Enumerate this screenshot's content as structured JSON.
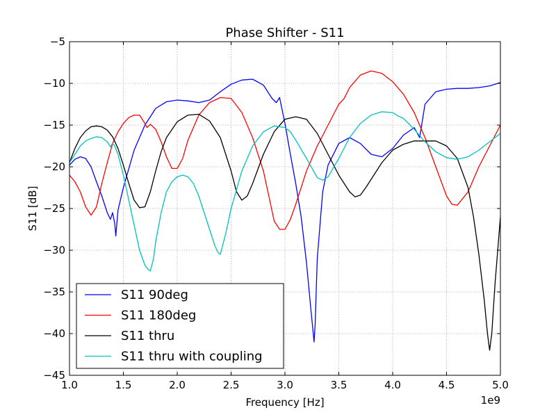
{
  "chart_data": {
    "type": "line",
    "title": "Phase Shifter - S11",
    "xlabel": "Frequency [Hz]",
    "ylabel": "S11 [dB]",
    "x_offset_label": "1e9",
    "xlim": [
      1.0,
      5.0
    ],
    "ylim": [
      -45,
      -5
    ],
    "xticks": [
      1.0,
      1.5,
      2.0,
      2.5,
      3.0,
      3.5,
      4.0,
      4.5,
      5.0
    ],
    "xtick_labels": [
      "1.0",
      "1.5",
      "2.0",
      "2.5",
      "3.0",
      "3.5",
      "4.0",
      "4.5",
      "5.0"
    ],
    "yticks": [
      -45,
      -40,
      -35,
      -30,
      -25,
      -20,
      -15,
      -10,
      -5
    ],
    "ytick_labels": [
      "−45",
      "−40",
      "−35",
      "−30",
      "−25",
      "−20",
      "−15",
      "−10",
      "−5"
    ],
    "grid": true,
    "legend_position": "lower-left",
    "series": [
      {
        "name": "S11 90deg",
        "color": "#0000ff",
        "x": [
          1.0,
          1.05,
          1.1,
          1.15,
          1.2,
          1.25,
          1.3,
          1.35,
          1.38,
          1.4,
          1.42,
          1.43,
          1.45,
          1.5,
          1.6,
          1.7,
          1.8,
          1.9,
          2.0,
          2.1,
          2.2,
          2.3,
          2.4,
          2.5,
          2.6,
          2.7,
          2.8,
          2.88,
          2.92,
          2.95,
          3.0,
          3.05,
          3.1,
          3.15,
          3.2,
          3.24,
          3.27,
          3.28,
          3.3,
          3.35,
          3.4,
          3.5,
          3.6,
          3.7,
          3.8,
          3.9,
          4.0,
          4.1,
          4.2,
          4.25,
          4.3,
          4.4,
          4.5,
          4.6,
          4.7,
          4.8,
          4.9,
          5.0
        ],
        "y": [
          -19.8,
          -19.1,
          -18.8,
          -19.0,
          -20.0,
          -21.8,
          -23.5,
          -25.5,
          -26.3,
          -25.5,
          -26.8,
          -28.3,
          -25.2,
          -22.5,
          -18.0,
          -15.0,
          -13.0,
          -12.2,
          -12.0,
          -12.1,
          -12.3,
          -12.0,
          -11.0,
          -10.1,
          -9.6,
          -9.5,
          -10.2,
          -11.8,
          -12.3,
          -11.7,
          -14.8,
          -18.5,
          -22.0,
          -26.0,
          -31.5,
          -37.0,
          -41.0,
          -39.0,
          -31.0,
          -23.0,
          -19.8,
          -17.2,
          -16.5,
          -17.2,
          -18.5,
          -18.8,
          -17.8,
          -16.2,
          -15.3,
          -16.5,
          -12.5,
          -11.0,
          -10.7,
          -10.6,
          -10.6,
          -10.5,
          -10.3,
          -9.9
        ]
      },
      {
        "name": "S11 180deg",
        "color": "#ff0000",
        "x": [
          1.0,
          1.05,
          1.1,
          1.15,
          1.2,
          1.25,
          1.3,
          1.35,
          1.4,
          1.45,
          1.5,
          1.55,
          1.6,
          1.65,
          1.7,
          1.72,
          1.75,
          1.8,
          1.85,
          1.9,
          1.95,
          2.0,
          2.05,
          2.1,
          2.2,
          2.3,
          2.4,
          2.5,
          2.6,
          2.7,
          2.8,
          2.85,
          2.9,
          2.95,
          3.0,
          3.05,
          3.1,
          3.2,
          3.3,
          3.4,
          3.5,
          3.55,
          3.6,
          3.7,
          3.8,
          3.9,
          4.0,
          4.1,
          4.2,
          4.3,
          4.4,
          4.5,
          4.55,
          4.6,
          4.7,
          4.8,
          4.9,
          5.0
        ],
        "y": [
          -21.0,
          -21.8,
          -23.0,
          -24.8,
          -25.8,
          -24.8,
          -22.0,
          -19.5,
          -17.2,
          -15.8,
          -14.8,
          -14.1,
          -13.8,
          -13.8,
          -14.8,
          -15.3,
          -14.9,
          -15.5,
          -17.0,
          -18.8,
          -20.2,
          -20.2,
          -19.0,
          -16.8,
          -13.8,
          -12.3,
          -11.7,
          -11.8,
          -13.5,
          -16.5,
          -20.5,
          -23.5,
          -26.5,
          -27.5,
          -27.5,
          -26.3,
          -24.5,
          -20.5,
          -17.5,
          -15.0,
          -12.5,
          -11.8,
          -10.5,
          -9.0,
          -8.5,
          -8.8,
          -9.8,
          -11.3,
          -13.5,
          -16.5,
          -20.0,
          -23.5,
          -24.5,
          -24.6,
          -23.0,
          -20.0,
          -17.5,
          -15.0
        ]
      },
      {
        "name": "S11 thru",
        "color": "#000000",
        "x": [
          1.0,
          1.05,
          1.1,
          1.15,
          1.2,
          1.25,
          1.3,
          1.35,
          1.4,
          1.45,
          1.5,
          1.55,
          1.6,
          1.65,
          1.7,
          1.75,
          1.8,
          1.85,
          1.9,
          2.0,
          2.1,
          2.2,
          2.3,
          2.4,
          2.5,
          2.55,
          2.6,
          2.65,
          2.7,
          2.8,
          2.9,
          3.0,
          3.1,
          3.2,
          3.3,
          3.4,
          3.5,
          3.6,
          3.65,
          3.7,
          3.75,
          3.8,
          3.9,
          4.0,
          4.1,
          4.2,
          4.3,
          4.4,
          4.5,
          4.6,
          4.7,
          4.75,
          4.8,
          4.85,
          4.88,
          4.9,
          4.92,
          4.95,
          5.0
        ],
        "y": [
          -19.5,
          -17.8,
          -16.5,
          -15.7,
          -15.2,
          -15.1,
          -15.2,
          -15.6,
          -16.4,
          -17.8,
          -19.8,
          -22.0,
          -24.0,
          -24.9,
          -24.8,
          -23.0,
          -20.5,
          -18.2,
          -16.5,
          -14.6,
          -13.8,
          -13.7,
          -14.5,
          -16.5,
          -20.5,
          -23.0,
          -24.0,
          -23.5,
          -22.0,
          -18.5,
          -15.8,
          -14.3,
          -14.0,
          -14.3,
          -16.0,
          -18.5,
          -21.0,
          -23.0,
          -23.6,
          -23.4,
          -22.5,
          -21.5,
          -19.5,
          -18.0,
          -17.3,
          -16.9,
          -16.9,
          -16.9,
          -17.5,
          -19.0,
          -22.5,
          -26.0,
          -30.5,
          -36.0,
          -40.0,
          -42.0,
          -40.0,
          -34.0,
          -26.0
        ]
      },
      {
        "name": "S11 thru with coupling",
        "color": "#00bfbf",
        "x": [
          1.0,
          1.05,
          1.1,
          1.15,
          1.2,
          1.25,
          1.3,
          1.35,
          1.38,
          1.4,
          1.42,
          1.45,
          1.5,
          1.55,
          1.6,
          1.65,
          1.7,
          1.73,
          1.75,
          1.78,
          1.8,
          1.85,
          1.9,
          1.95,
          2.0,
          2.05,
          2.1,
          2.15,
          2.2,
          2.25,
          2.3,
          2.35,
          2.38,
          2.4,
          2.45,
          2.5,
          2.6,
          2.7,
          2.8,
          2.9,
          3.0,
          3.05,
          3.1,
          3.2,
          3.3,
          3.35,
          3.4,
          3.5,
          3.6,
          3.7,
          3.8,
          3.9,
          4.0,
          4.05,
          4.1,
          4.2,
          4.3,
          4.4,
          4.5,
          4.6,
          4.7,
          4.8,
          4.9,
          5.0
        ],
        "y": [
          -19.5,
          -18.5,
          -17.5,
          -16.9,
          -16.6,
          -16.4,
          -16.5,
          -17.0,
          -17.6,
          -17.2,
          -17.5,
          -18.5,
          -21.0,
          -24.0,
          -27.0,
          -30.0,
          -31.8,
          -32.3,
          -32.5,
          -31.0,
          -29.0,
          -25.5,
          -23.0,
          -21.8,
          -21.2,
          -21.0,
          -21.2,
          -22.0,
          -23.5,
          -25.5,
          -27.5,
          -29.5,
          -30.3,
          -30.5,
          -28.0,
          -25.0,
          -20.5,
          -17.5,
          -15.8,
          -15.1,
          -15.3,
          -15.8,
          -16.8,
          -19.0,
          -21.3,
          -21.6,
          -21.2,
          -19.0,
          -16.5,
          -14.8,
          -13.8,
          -13.4,
          -13.5,
          -13.9,
          -14.2,
          -15.5,
          -17.0,
          -18.2,
          -18.9,
          -19.1,
          -18.8,
          -18.0,
          -17.0,
          -16.0
        ]
      }
    ]
  }
}
